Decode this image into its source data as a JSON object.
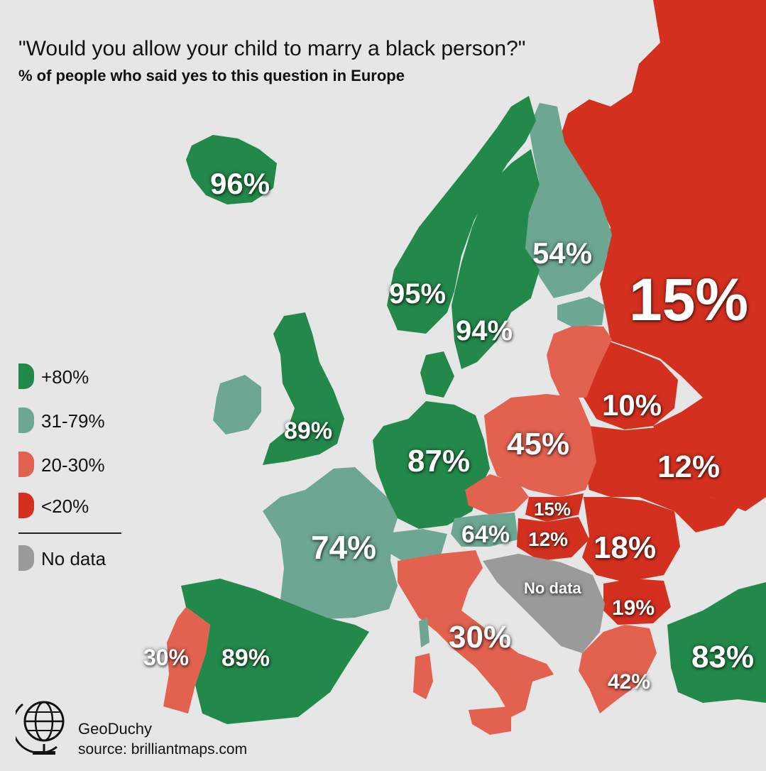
{
  "title": "\"Would you allow your child to marry a black person?\"",
  "subtitle": "% of people who said yes to this question in Europe",
  "colors": {
    "background": "#e6e6e6",
    "green": "#23894a",
    "teal": "#6da692",
    "salmon": "#e2614f",
    "red": "#d4301f",
    "grey": "#9a9a9a"
  },
  "legend": [
    {
      "label": "+80%",
      "color_key": "green"
    },
    {
      "label": "31-79%",
      "color_key": "teal"
    },
    {
      "label": "20-30%",
      "color_key": "salmon"
    },
    {
      "label": "<20%",
      "color_key": "red"
    },
    {
      "label": "No data",
      "color_key": "grey"
    }
  ],
  "values": {
    "iceland": "96%",
    "norway": "95%",
    "sweden": "94%",
    "finland": "54%",
    "russia": "15%",
    "uk": "89%",
    "germany": "87%",
    "poland": "45%",
    "belarus": "10%",
    "ukraine": "12%",
    "france": "74%",
    "austria": "64%",
    "slovakia": "15%",
    "hungary": "12%",
    "romania": "18%",
    "balkans": "No data",
    "bulgaria": "19%",
    "italy": "30%",
    "portugal": "30%",
    "spain": "89%",
    "greece": "42%",
    "turkey": "83%"
  },
  "brand": {
    "name": "GeoDuchy",
    "source": "source: brilliantmaps.com",
    "icon": "globe-icon"
  }
}
